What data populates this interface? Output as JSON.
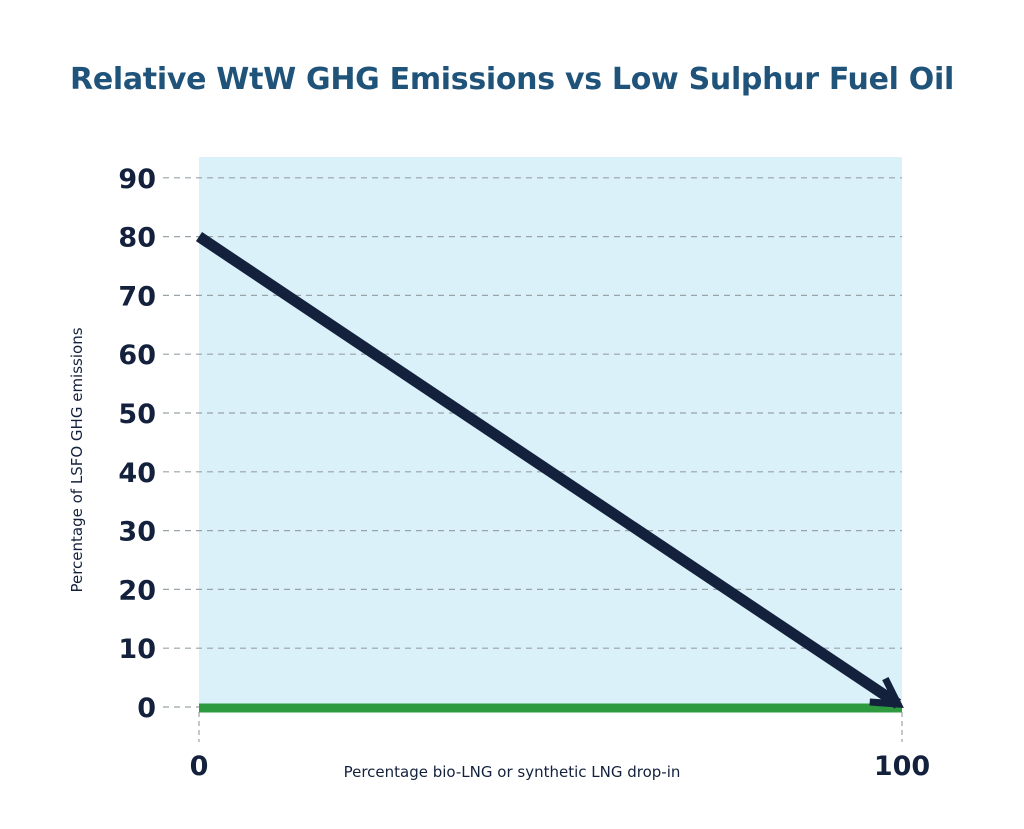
{
  "chart_data": {
    "type": "line",
    "title": "Relative WtW GHG Emissions vs Low Sulphur Fuel Oil",
    "xlabel": "Percentage bio-LNG or synthetic LNG drop-in",
    "ylabel": "Percentage of LSFO GHG emissions",
    "xlim": [
      0,
      100
    ],
    "ylim": [
      0,
      90
    ],
    "x_ticks": [
      "0",
      "100"
    ],
    "y_ticks": [
      "0",
      "10",
      "20",
      "30",
      "40",
      "50",
      "60",
      "70",
      "80",
      "90"
    ],
    "grid": "horizontal dashed",
    "series": [
      {
        "x": [
          0,
          100
        ],
        "y": [
          80,
          0
        ],
        "style": "arrow",
        "color": "#14213d"
      },
      {
        "x": [
          0,
          100
        ],
        "y": [
          0,
          0
        ],
        "style": "line",
        "color": "#2e9a3f"
      }
    ],
    "background_color": "#dbf1fa"
  }
}
